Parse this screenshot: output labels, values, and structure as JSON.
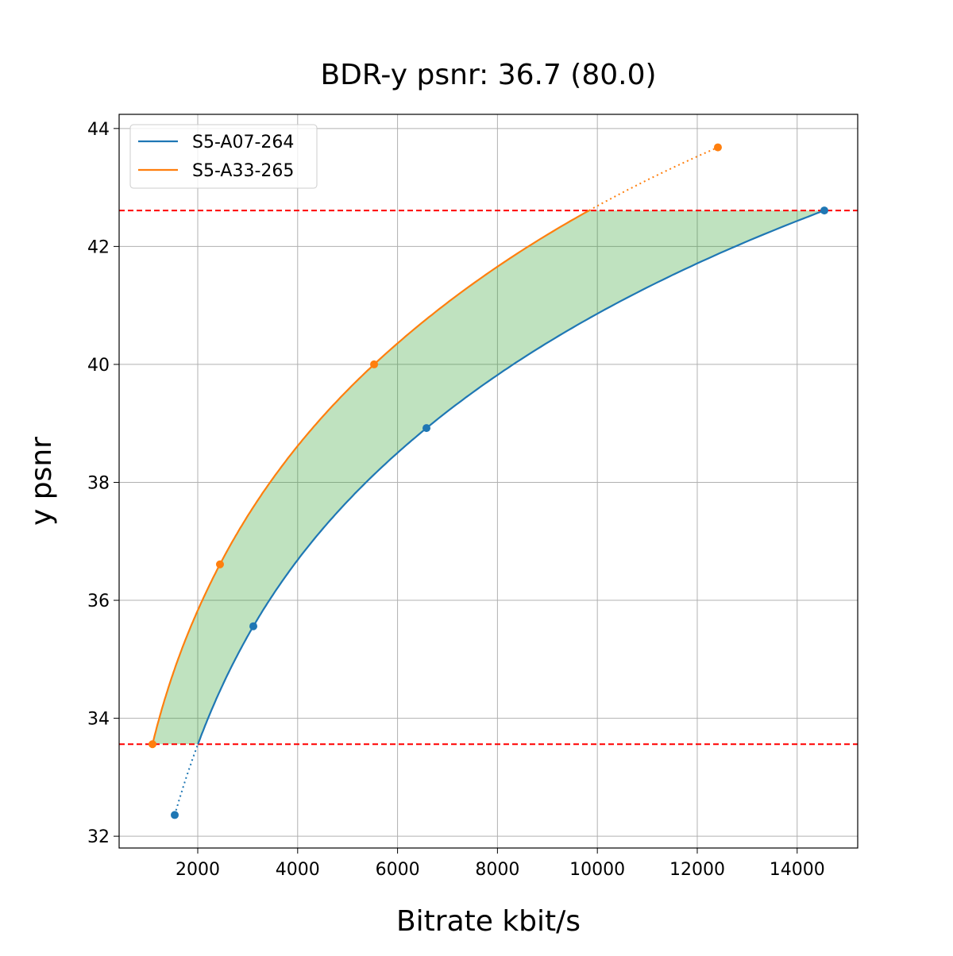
{
  "chart_data": {
    "type": "line",
    "title": "BDR-y psnr: 36.7 (80.0)",
    "xlabel": "Bitrate kbit/s",
    "ylabel": "y psnr",
    "xlim": [
      426,
      15212
    ],
    "ylim": [
      31.8,
      44.24
    ],
    "xticks": [
      2000,
      4000,
      6000,
      8000,
      10000,
      12000,
      14000
    ],
    "yticks": [
      32,
      34,
      36,
      38,
      40,
      42,
      44
    ],
    "grid": true,
    "legend_position": "upper left",
    "series": [
      {
        "name": "S5-A07-264",
        "color": "#1f77b4",
        "x": [
          1539,
          3113,
          6579,
          14544
        ],
        "y": [
          32.36,
          35.56,
          38.92,
          42.61
        ]
      },
      {
        "name": "S5-A33-265",
        "color": "#ff7f0e",
        "x": [
          1094,
          2445,
          5530,
          12413
        ],
        "y": [
          33.56,
          36.61,
          40.0,
          43.68
        ]
      }
    ],
    "hlines": {
      "values": [
        33.56,
        42.61
      ],
      "color": "#ff0000",
      "style": "dashed"
    },
    "fill_between": {
      "color": "#2ca02c",
      "alpha": 0.3,
      "y_range": [
        33.56,
        42.61
      ]
    }
  }
}
